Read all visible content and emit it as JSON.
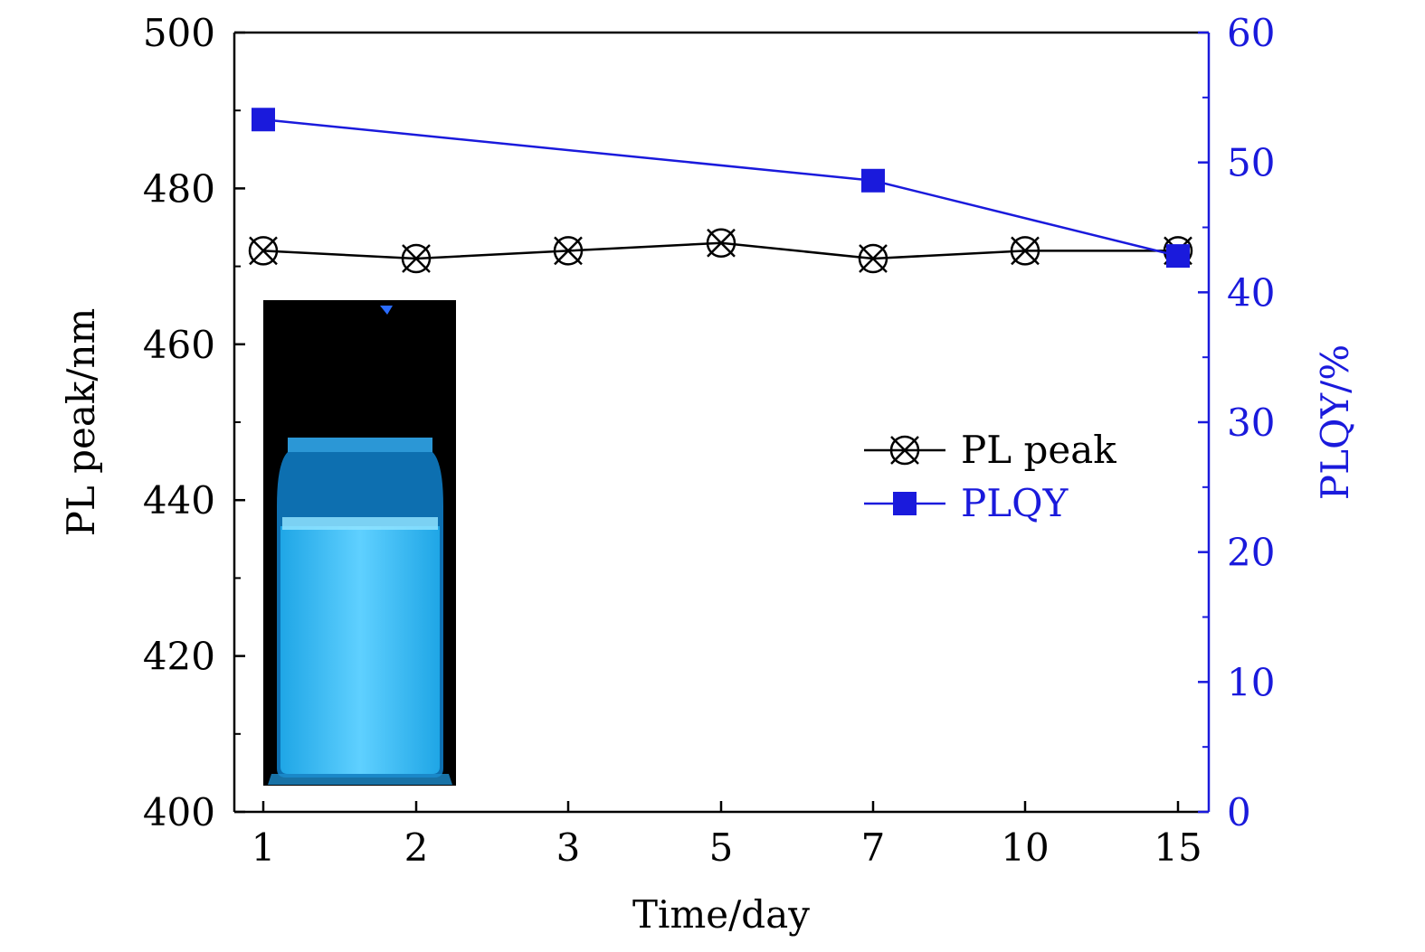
{
  "chart_data": {
    "type": "line",
    "title": "",
    "xlabel": "Time/day",
    "ylabel_left": "PL peak/nm",
    "ylabel_right": "PLQY/%",
    "x_categories": [
      "1",
      "2",
      "3",
      "5",
      "7",
      "10",
      "15"
    ],
    "y_left_range": [
      400,
      500
    ],
    "y_left_ticks": [
      "400",
      "420",
      "440",
      "460",
      "480",
      "500"
    ],
    "y_right_range": [
      0,
      60
    ],
    "y_right_ticks": [
      "0",
      "10",
      "20",
      "30",
      "40",
      "50",
      "60"
    ],
    "grid": false,
    "legend_position": "center-right",
    "inset": "photo of a vial of solution glowing blue under UV light",
    "series": [
      {
        "name": "PL peak",
        "axis": "left",
        "marker": "crossed-circle",
        "color": "#000000",
        "points": [
          {
            "x": "1",
            "y": 472
          },
          {
            "x": "2",
            "y": 471
          },
          {
            "x": "3",
            "y": 472
          },
          {
            "x": "5",
            "y": 473
          },
          {
            "x": "7",
            "y": 471
          },
          {
            "x": "10",
            "y": 472
          },
          {
            "x": "15",
            "y": 472
          }
        ]
      },
      {
        "name": "PLQY",
        "axis": "right",
        "marker": "square",
        "color": "#1a1adc",
        "points": [
          {
            "x": "1",
            "y": 53.3
          },
          {
            "x": "7",
            "y": 48.6
          },
          {
            "x": "15",
            "y": 42.8
          }
        ]
      }
    ]
  }
}
